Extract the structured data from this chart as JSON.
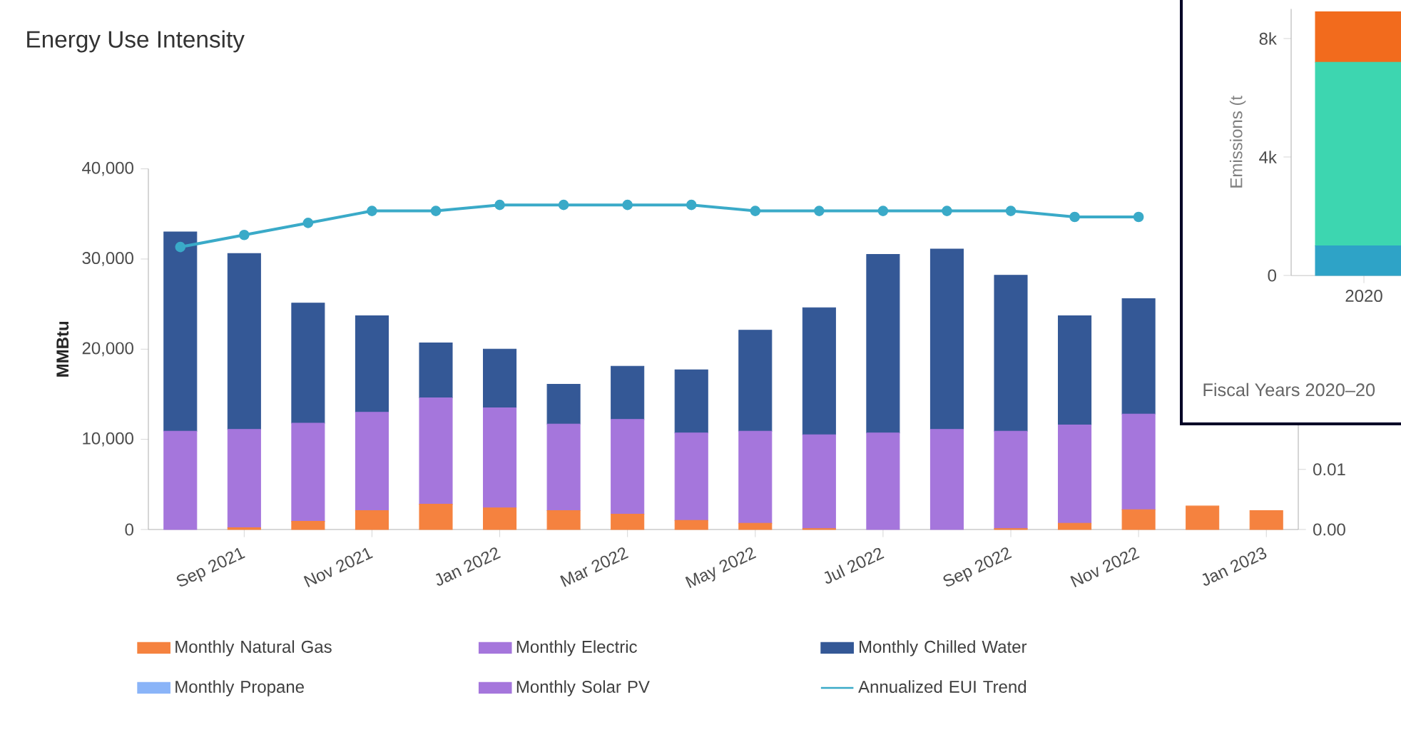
{
  "chart_data": [
    {
      "type": "bar",
      "stacked": true,
      "title": "Energy Use Intensity",
      "ylabel": "MMBtu",
      "categories": [
        null,
        "Sep 2021",
        null,
        "Nov 2021",
        null,
        "Jan 2022",
        null,
        "Mar 2022",
        null,
        "May 2022",
        null,
        "Jul 2022",
        null,
        "Sep 2022",
        null,
        "Nov 2022",
        null,
        "Jan 2023"
      ],
      "ylim": [
        0,
        40000
      ],
      "yticks": [
        0,
        {
          "value": 10000,
          "label": "10,000"
        },
        {
          "value": 20000,
          "label": "20,000"
        },
        {
          "value": 30000,
          "label": "30,000"
        },
        {
          "value": 40000,
          "label": "40,000"
        }
      ],
      "y2lim": [
        0,
        0.06
      ],
      "y2ticks": [
        {
          "value": 0,
          "label": "0.00"
        },
        {
          "value": 0.01,
          "label": "0.01"
        }
      ],
      "legend": "bottom",
      "series": [
        {
          "name": "Monthly Natural Gas",
          "color": "#f5823f",
          "values": [
            0,
            200,
            900,
            2100,
            2800,
            2400,
            2100,
            1700,
            1000,
            700,
            100,
            0,
            0,
            100,
            700,
            2200,
            2600,
            2100
          ]
        },
        {
          "name": "Monthly Electric",
          "color": "#a576dc",
          "values": [
            10900,
            10900,
            10900,
            10900,
            11800,
            11100,
            9600,
            10500,
            9700,
            10200,
            10400,
            10700,
            11100,
            10800,
            10900,
            10600,
            null,
            null
          ]
        },
        {
          "name": "Monthly Chilled Water",
          "color": "#345896",
          "values": [
            22100,
            19500,
            13300,
            10700,
            6100,
            6500,
            4400,
            5900,
            7000,
            11200,
            14100,
            19800,
            20000,
            17300,
            12100,
            12800,
            null,
            null
          ]
        },
        {
          "name": "Monthly Propane",
          "color": "#8ab4f8",
          "values": [
            0,
            0,
            0,
            0,
            0,
            0,
            0,
            0,
            0,
            0,
            0,
            0,
            0,
            0,
            0,
            0,
            null,
            null
          ]
        },
        {
          "name": "Monthly Solar PV",
          "color": "#a576dc",
          "values": [
            0,
            0,
            0,
            0,
            0,
            0,
            0,
            0,
            0,
            0,
            0,
            0,
            0,
            0,
            0,
            0,
            null,
            null
          ]
        },
        {
          "name": "Annualized EUI Trend",
          "color": "#3aaac8",
          "type": "line",
          "axis": "y2",
          "marker": "circle",
          "line_style": "solid",
          "values": [
            0.047,
            0.049,
            0.051,
            0.053,
            0.053,
            0.054,
            0.054,
            0.054,
            0.054,
            0.053,
            0.053,
            0.053,
            0.053,
            0.053,
            0.052,
            0.052,
            null,
            null
          ]
        }
      ]
    },
    {
      "type": "bar",
      "stacked": true,
      "ylabel": "Emissions (t",
      "categories": [
        "2020"
      ],
      "ylim": [
        0,
        9000
      ],
      "yticks": [
        0,
        {
          "value": 4000,
          "label": "4k"
        },
        {
          "value": 8000,
          "label": "8k"
        }
      ],
      "annotations": [
        "Fiscal Years 2020–20"
      ],
      "series": [
        {
          "color": "#2ea3c7",
          "values": [
            1000
          ]
        },
        {
          "color": "#3dd6b0",
          "values": [
            6200
          ]
        },
        {
          "color": "#f26b1d",
          "values": [
            1700
          ]
        }
      ]
    }
  ]
}
